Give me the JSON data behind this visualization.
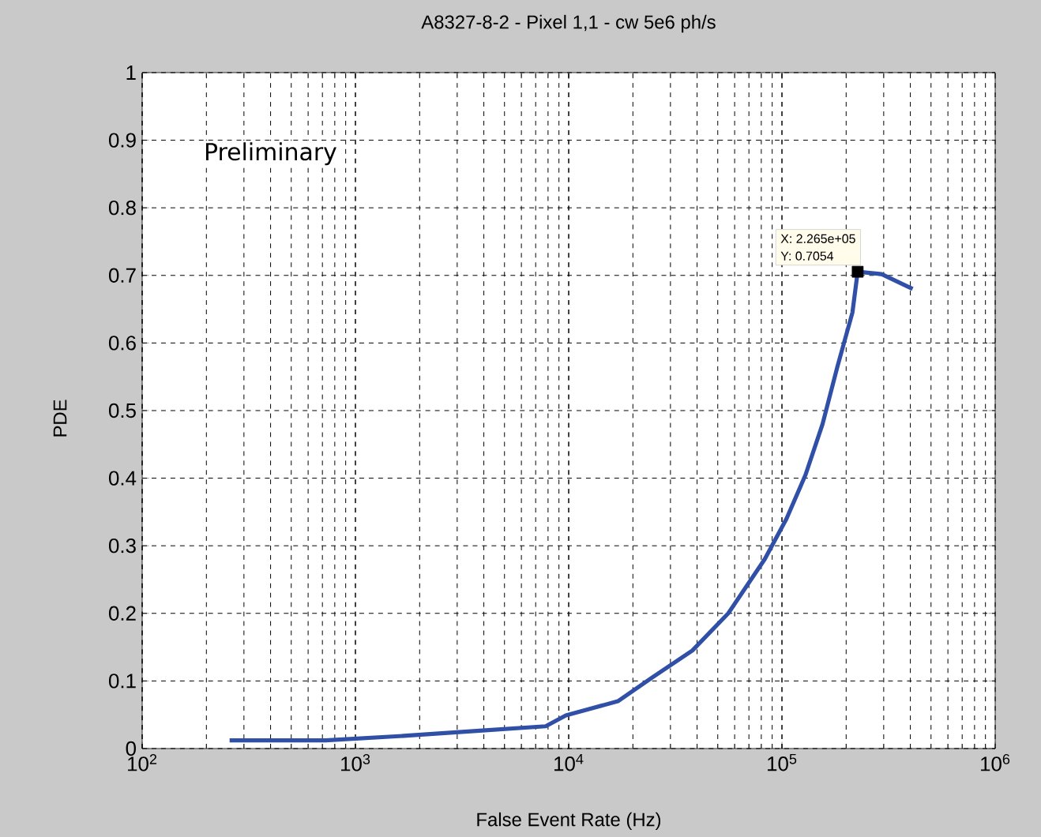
{
  "chart_data": {
    "type": "line",
    "title": "A8327-8-2 - Pixel 1,1 - cw 5e6 ph/s",
    "xlabel": "False Event Rate (Hz)",
    "ylabel": "PDE",
    "log": "x",
    "grid": true,
    "marker": "none",
    "line_style": "solid",
    "xlim": [
      100,
      1000000
    ],
    "ylim": [
      0,
      1
    ],
    "xticks": [
      {
        "value": 100,
        "label": "10$^{2}$"
      },
      {
        "value": 1000,
        "label": "10$^{3}$"
      },
      {
        "value": 10000,
        "label": "10$^{4}$"
      },
      {
        "value": 100000,
        "label": "10$^{5}$"
      },
      {
        "value": 1000000,
        "label": "10$^{6}$"
      }
    ],
    "yticks": [
      0,
      0.1,
      0.2,
      0.3,
      0.4,
      0.5,
      0.6,
      0.7,
      0.8,
      0.9,
      1
    ],
    "series": [
      {
        "color": "#3050a8",
        "x": [
          257,
          724,
          1740,
          3700,
          7800,
          9700,
          17000,
          24600,
          38000,
          56000,
          83000,
          105000,
          129000,
          155000,
          182000,
          214000,
          226500,
          293000,
          410000
        ],
        "values": [
          0.012,
          0.012,
          0.019,
          0.026,
          0.033,
          0.049,
          0.07,
          0.105,
          0.145,
          0.2,
          0.28,
          0.34,
          0.405,
          0.48,
          0.565,
          0.645,
          0.7054,
          0.702,
          0.68
        ]
      },
      {
        "type": "scatter",
        "marker": "square",
        "color": "#000000",
        "x": [
          226500
        ],
        "values": [
          0.7054
        ]
      }
    ],
    "annotations": [
      "Preliminary",
      "X: 2.265e+05",
      "Y: 0.7054"
    ]
  }
}
